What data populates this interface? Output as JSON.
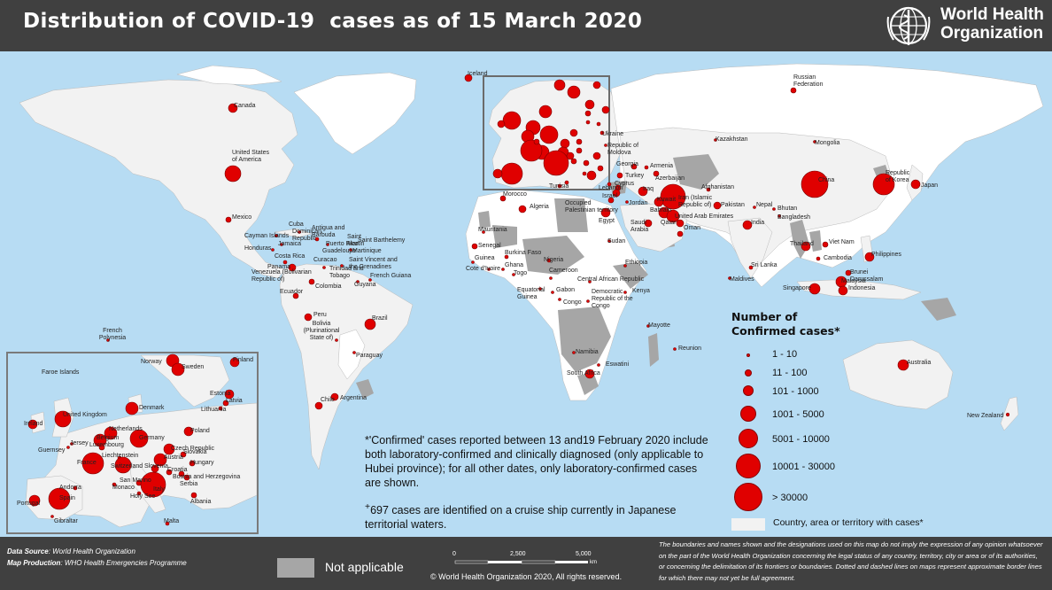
{
  "header": {
    "title": "Distribution of COVID-19  cases as of 15 March 2020",
    "org_line1": "World Health",
    "org_line2": "Organization"
  },
  "colors": {
    "header_bg": "#404040",
    "ocean": "#b7dcf3",
    "land_no_cases": "#ffffff",
    "land_with_cases": "#f2f2f2",
    "not_applicable": "#a6a6a6",
    "marker": "#e00000"
  },
  "legend": {
    "title_line1": "Number of",
    "title_line2": "Confirmed cases*",
    "bins": [
      "1 - 10",
      "11 - 100",
      "101 - 1000",
      "1001 - 5000",
      "5001 - 10000",
      "10001 - 30000",
      "> 30000"
    ],
    "cases_area_label": "Country, area or territory with cases*"
  },
  "notes": {
    "confirmed": "*'Confirmed' cases reported between 13 and19 February 2020 include both laboratory-confirmed and clinically diagnosed (only applicable to Hubei province); for all other dates, only laboratory-confirmed cases are shown.",
    "cruise_sup": "+",
    "cruise": "697 cases are identified on a cruise ship currently in Japanese territorial waters."
  },
  "footer": {
    "data_source_label": "Data Source",
    "data_source_value": ": World Health Organization",
    "map_production_label": "Map Production",
    "map_production_value": ": WHO Health Emergencies Programme",
    "not_applicable_label": "Not applicable",
    "scale_labels": [
      "0",
      "2,500",
      "5,000"
    ],
    "scale_unit": "km",
    "copyright": "© World Health Organization  2020,  All rights reserved.",
    "disclaimer": "The boundaries and names shown and the designations used on this map do not imply the expression of any opinion whatsoever on the part of the World Health Organization concerning the legal status of any country, territory, city or area or of its authorities, or concerning the delimitation of its frontiers or boundaries. Dotted and dashed lines on maps represent approximate border lines for which there may not yet be full agreement."
  },
  "country_labels": [
    "Iceland",
    "Russian Federation",
    "Canada",
    "Kazakhstan",
    "Mongolia",
    "Ukraine",
    "Republic of Moldova",
    "United States of America",
    "Georgia",
    "Armenia",
    "Azerbaijan",
    "Turkey",
    "Tunisia",
    "Lebanon",
    "Israel",
    "Cyprus",
    "Morocco",
    "Algeria",
    "Occupied Palestinian territory",
    "Jordan",
    "Kuwait",
    "Bahrain",
    "Qatar",
    "Saudi Arabia",
    "United Arab Emirates",
    "Oman",
    "Iraq",
    "Iran (Islamic Republic of)",
    "Afghanistan",
    "Pakistan",
    "Nepal",
    "Bhutan",
    "Bangladesh",
    "India",
    "China",
    "Republic of Korea",
    "Japan",
    "Mexico",
    "Cuba",
    "Antigua and Barbuda",
    "Saint Barthelemy",
    "Cayman Islands",
    "Dominican Republic",
    "Puerto Rico",
    "Saint Martin",
    "Jamaica",
    "Honduras",
    "Guadeloupe",
    "Martinique",
    "Costa Rica",
    "Panama",
    "Curacao",
    "Saint Vincent and the Grenadines",
    "Trinidad and Tobago",
    "Venezuela (Bolivarian Republic of)",
    "Guyana",
    "French Guiana",
    "Colombia",
    "Ecuador",
    "Egypt",
    "Mauritania",
    "Sudan",
    "Senegal",
    "Burkina Faso",
    "Nigeria",
    "Cote d'Ivoire",
    "Ghana",
    "Togo",
    "Guinea",
    "Cameroon",
    "Ethiopia",
    "Central African Republic",
    "Equatorial Guinea",
    "Gabon",
    "Congo",
    "Democratic Republic of the Congo",
    "Kenya",
    "Thailand",
    "Viet Nam",
    "Cambodia",
    "Philippines",
    "Sri Lanka",
    "Maldives",
    "Brunei Darussalam",
    "Malaysia",
    "Singapore",
    "Indonesia",
    "Peru",
    "Brazil",
    "Bolivia (Plurinational State of)",
    "Paraguay",
    "Chile",
    "Argentina",
    "French Polynesia",
    "Mayotte",
    "Reunion",
    "Namibia",
    "Eswatini",
    "South Africa",
    "Australia",
    "New Zealand"
  ],
  "inset_labels": [
    "Faroe Islands",
    "Norway",
    "Sweden",
    "Finland",
    "Estonia",
    "Latvia",
    "Lithuania",
    "Denmark",
    "Ireland",
    "United Kingdom",
    "Netherlands",
    "Belgium",
    "Luxembourg",
    "Germany",
    "Poland",
    "Czech Republic",
    "Guernsey",
    "Jersey",
    "France",
    "Liechtenstein",
    "Switzerland",
    "Austria",
    "Slovakia",
    "Hungary",
    "Slovenia",
    "Croatia",
    "San Marino",
    "Monaco",
    "Serbia",
    "Bosnia and Herzegovina",
    "Andorra",
    "Spain",
    "Portugal",
    "Italy",
    "Holy See",
    "Albania",
    "Gibraltar",
    "Malta"
  ]
}
